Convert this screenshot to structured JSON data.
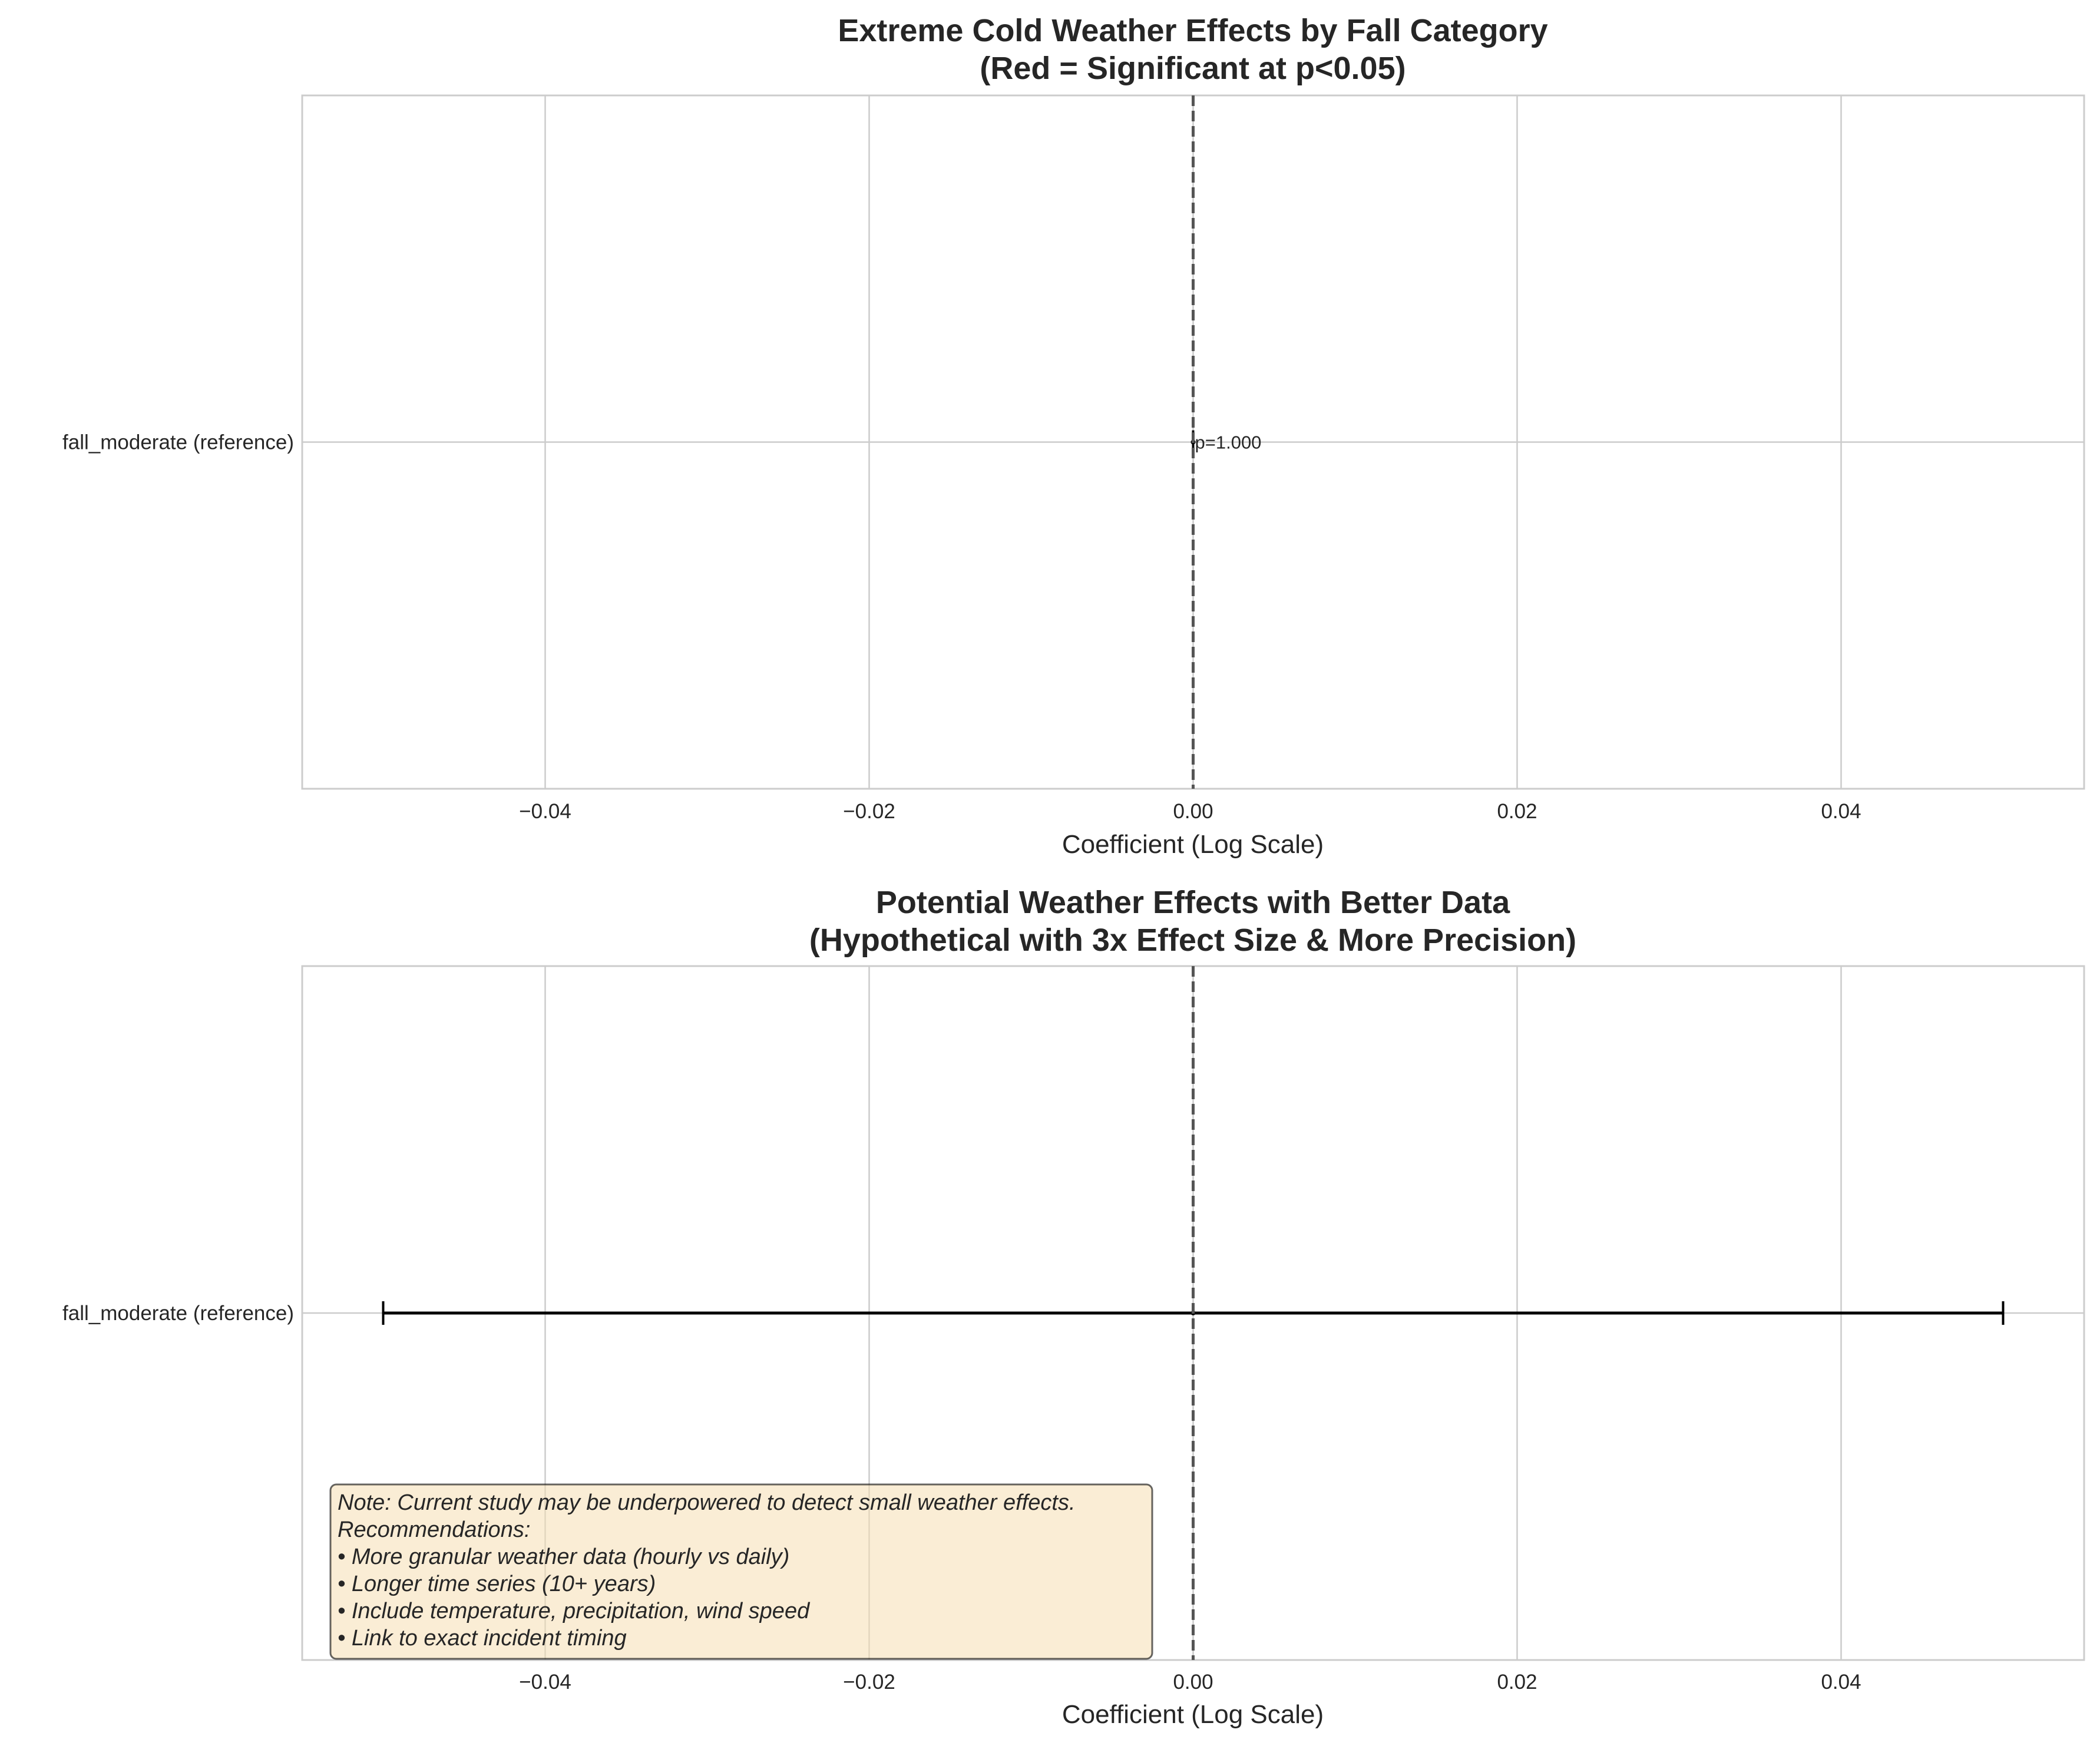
{
  "chart_data": [
    {
      "type": "errorbar",
      "title": [
        "Extreme Cold Weather Effects by Fall Category",
        "(Red = Significant at p<0.05)"
      ],
      "xlabel": "Coefficient (Log Scale)",
      "ylabel": "",
      "xlim": [
        -0.055,
        0.055
      ],
      "xticks": [
        -0.04,
        -0.02,
        0.0,
        0.02,
        0.04
      ],
      "xtick_labels": [
        "−0.04",
        "−0.02",
        "0.00",
        "0.02",
        "0.04"
      ],
      "categories": [
        "fall_moderate (reference)"
      ],
      "values": [
        0.0
      ],
      "ci": [
        [
          0.0,
          0.0
        ]
      ],
      "annotations": [
        "p=1.000"
      ],
      "reference_line_x": 0.0,
      "grid": true
    },
    {
      "type": "errorbar",
      "title": [
        "Potential Weather Effects with Better Data",
        "(Hypothetical with 3x Effect Size & More Precision)"
      ],
      "xlabel": "Coefficient (Log Scale)",
      "ylabel": "",
      "xlim": [
        -0.055,
        0.055
      ],
      "xticks": [
        -0.04,
        -0.02,
        0.0,
        0.02,
        0.04
      ],
      "xtick_labels": [
        "−0.04",
        "−0.02",
        "0.00",
        "0.02",
        "0.04"
      ],
      "categories": [
        "fall_moderate (reference)"
      ],
      "values": [
        0.0
      ],
      "ci": [
        [
          -0.05,
          0.05
        ]
      ],
      "reference_line_x": 0.0,
      "grid": true,
      "note": [
        "Note: Current study may be underpowered to detect small weather effects.",
        "Recommendations:",
        "• More granular weather data (hourly vs daily)",
        "• Longer time series (10+ years)",
        "• Include temperature, precipitation, wind speed",
        "• Link to exact incident timing"
      ]
    }
  ],
  "colors": {
    "grid": "#cccccc",
    "frame": "#cccccc",
    "text": "#262626",
    "errorbar": "#000000",
    "refline": "#555555",
    "note_bg": "#f5deb3",
    "note_border": "#000000"
  }
}
